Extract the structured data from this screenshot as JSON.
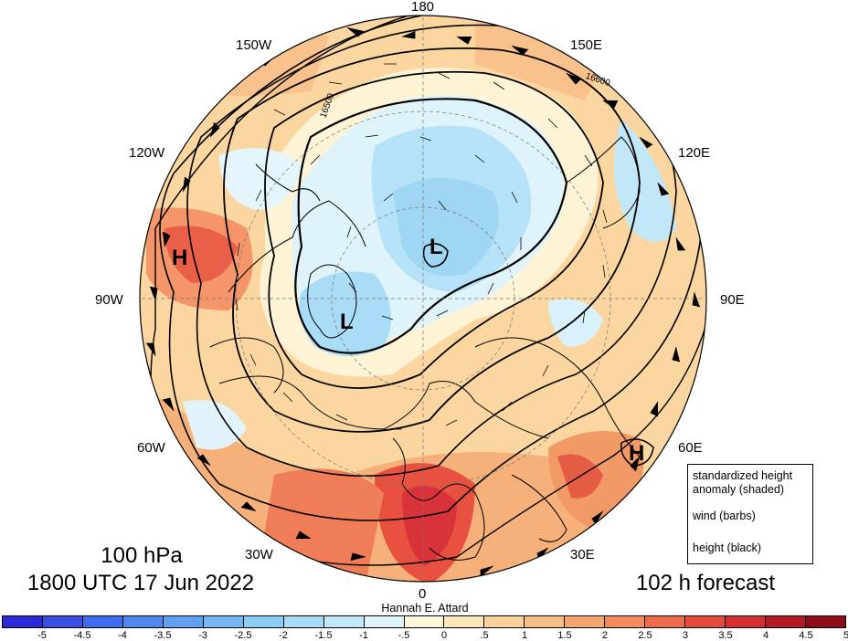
{
  "map": {
    "longitude_labels": {
      "deg180": "180",
      "deg150e": "150E",
      "deg120e": "120E",
      "deg90e": "90E",
      "deg60e": "60E",
      "deg30e": "30E",
      "deg0": "0",
      "deg30w": "30W",
      "deg60w": "60W",
      "deg90w": "90W",
      "deg120w": "120W",
      "deg150w": "150W"
    },
    "contour_labels": [
      "16600",
      "16500"
    ],
    "centers": [
      {
        "symbol": "H",
        "region": "western North America"
      },
      {
        "symbol": "L",
        "region": "Siberia / Arctic"
      },
      {
        "symbol": "L",
        "region": "Canadian Arctic"
      },
      {
        "symbol": "H",
        "region": "Central Asia"
      }
    ]
  },
  "title": {
    "level": "100 hPa",
    "valid_time": "1800 UTC 17 Jun 2022",
    "forecast": "102 h forecast"
  },
  "credit": "Hannah E. Attard",
  "legend": {
    "line1": "standardized height",
    "line2": "anomaly (shaded)",
    "wind": "wind (barbs)",
    "height": "height (black)"
  },
  "colorbar": {
    "ticks": [
      "-5",
      "-4.5",
      "-4",
      "-3.5",
      "-3",
      "-2.5",
      "-2",
      "-1.5",
      "-1",
      "-.5",
      "0",
      ".5",
      "1",
      "1.5",
      "2",
      "2.5",
      "3",
      "3.5",
      "4",
      "4.5",
      "5"
    ],
    "colors": [
      "#2a2ad6",
      "#3a4ee4",
      "#3f6bee",
      "#4f86f0",
      "#5fa0f3",
      "#74b8f4",
      "#8ccdf6",
      "#a6dcf8",
      "#c2e9fa",
      "#def4fb",
      "#fff6d8",
      "#fde6b8",
      "#fbd39a",
      "#f8bd80",
      "#f6a66c",
      "#f38b5a",
      "#ee6a4a",
      "#e54a3c",
      "#d42e30",
      "#b51a24",
      "#8e0c18"
    ]
  }
}
